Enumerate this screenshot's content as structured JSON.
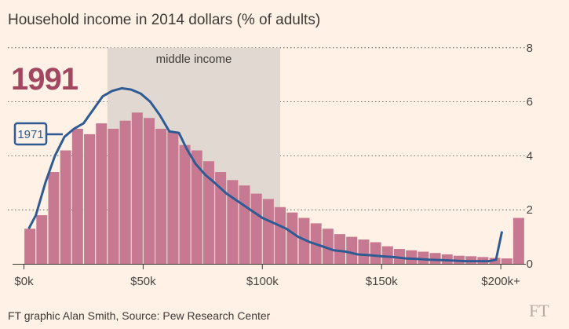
{
  "chart_data": {
    "type": "bar",
    "title": "Household income in 2014 dollars (% of adults)",
    "year_label": "1991",
    "band_label": "middle income",
    "band_range": [
      35,
      107.5
    ],
    "x_ticks": [
      {
        "label": "$0k",
        "value": 0
      },
      {
        "label": "$50k",
        "value": 50
      },
      {
        "label": "$100k",
        "value": 100
      },
      {
        "label": "$150k",
        "value": 150
      },
      {
        "label": "$200k+",
        "value": 200
      }
    ],
    "y_ticks": [
      0,
      2,
      4,
      6,
      8
    ],
    "ylim": [
      0,
      8
    ],
    "xlim": [
      0,
      205
    ],
    "bar_width": 5,
    "bar_start": 0,
    "series": [
      {
        "name": "1991",
        "values": [
          1.3,
          1.8,
          3.4,
          4.2,
          5.0,
          4.8,
          5.2,
          5.0,
          5.3,
          5.6,
          5.4,
          5.0,
          4.9,
          4.4,
          4.2,
          3.8,
          3.4,
          3.1,
          2.9,
          2.6,
          2.4,
          2.1,
          1.9,
          1.7,
          1.5,
          1.3,
          1.1,
          1.0,
          0.9,
          0.8,
          0.65,
          0.55,
          0.5,
          0.45,
          0.4,
          0.35,
          0.3,
          0.28,
          0.25,
          0.22,
          0.2,
          1.7
        ],
        "color": "#c87992"
      },
      {
        "name": "1971",
        "x": [
          2,
          5,
          9,
          13,
          17,
          21,
          25,
          29,
          33,
          37,
          41,
          45,
          49,
          53,
          57,
          61,
          65,
          68,
          72,
          76,
          80,
          85,
          90,
          95,
          100,
          105,
          110,
          115,
          120,
          125,
          130,
          135,
          140,
          145,
          150,
          155,
          160,
          165,
          170,
          175,
          180,
          185,
          190,
          195,
          198,
          200.5
        ],
        "values": [
          1.3,
          1.8,
          3.0,
          4.0,
          4.7,
          5.0,
          5.2,
          5.7,
          6.2,
          6.4,
          6.5,
          6.45,
          6.3,
          6.0,
          5.5,
          4.9,
          4.85,
          4.3,
          3.7,
          3.3,
          3.0,
          2.6,
          2.3,
          2.0,
          1.7,
          1.5,
          1.3,
          1.0,
          0.8,
          0.65,
          0.5,
          0.45,
          0.35,
          0.32,
          0.28,
          0.25,
          0.2,
          0.18,
          0.15,
          0.14,
          0.12,
          0.1,
          0.1,
          0.1,
          0.15,
          1.2
        ],
        "color": "#2f5b95"
      }
    ],
    "legend": [
      "1971"
    ],
    "source": "FT graphic Alan Smith, Source: Pew Research Center",
    "watermark": "FT"
  }
}
